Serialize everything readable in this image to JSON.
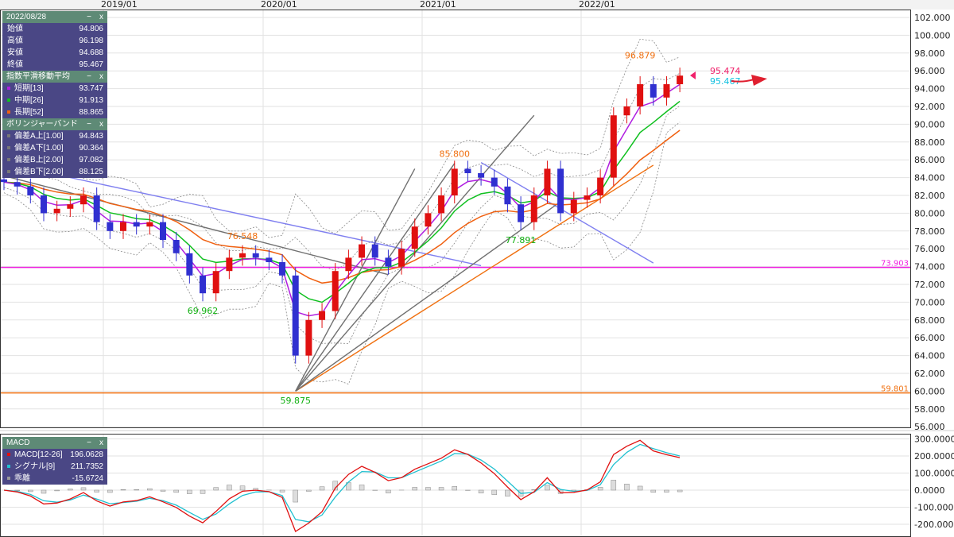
{
  "xaxis": {
    "ticks": [
      "2019/01",
      "2020/01",
      "2021/01",
      "2022/01"
    ]
  },
  "ohlc_panel": {
    "title": "2022/08/28",
    "rows": [
      {
        "label": "始値",
        "value": "94.806"
      },
      {
        "label": "高値",
        "value": "96.198"
      },
      {
        "label": "安値",
        "value": "94.688"
      },
      {
        "label": "終値",
        "value": "95.467"
      }
    ]
  },
  "ema_panel": {
    "title": "指数平滑移動平均",
    "rows": [
      {
        "label": "短期[13]",
        "value": "93.747",
        "color": "#b01ee0"
      },
      {
        "label": "中期[26]",
        "value": "91.913",
        "color": "#10c020"
      },
      {
        "label": "長期[52]",
        "value": "88.865",
        "color": "#f06010"
      }
    ]
  },
  "bb_panel": {
    "title": "ボリンジャーバンド",
    "rows": [
      {
        "label": "偏差A上[1.00]",
        "value": "94.843"
      },
      {
        "label": "偏差A下[1.00]",
        "value": "90.364"
      },
      {
        "label": "偏差B上[2.00]",
        "value": "97.082"
      },
      {
        "label": "偏差B下[2.00]",
        "value": "88.125"
      }
    ]
  },
  "macd_panel": {
    "title": "MACD",
    "rows": [
      {
        "label": "MACD[12-26]",
        "value": "196.0628",
        "color": "#e01010"
      },
      {
        "label": "シグナル[9]",
        "value": "211.7352",
        "color": "#20c0d0"
      },
      {
        "label": "乖離",
        "value": "-15.6724",
        "color": "#999999"
      }
    ]
  },
  "panel_controls": {
    "minimize": "−",
    "close": "x"
  },
  "chart_data": {
    "type": "candlestick",
    "price_axis": {
      "ticks": [
        "102.000",
        "100.000",
        "98.000",
        "96.000",
        "94.000",
        "92.000",
        "90.000",
        "88.000",
        "86.000",
        "84.000",
        "82.000",
        "80.000",
        "78.000",
        "76.000",
        "74.000",
        "72.000",
        "70.000",
        "68.000",
        "66.000",
        "64.000",
        "62.000",
        "60.000",
        "58.000",
        "56.000"
      ],
      "range": [
        56,
        102
      ]
    },
    "macd_axis": {
      "ticks": [
        "300.0000",
        "200.0000",
        "100.0000",
        "0.0000",
        "-100.0000",
        "-200.0000"
      ],
      "range": [
        -280,
        320
      ]
    },
    "start": "2018/05",
    "interval": "month",
    "close": [
      83.5,
      83,
      82,
      80,
      80.5,
      81,
      82,
      79,
      78,
      79,
      78.5,
      79,
      77,
      75.5,
      73,
      71,
      73.5,
      75,
      75.5,
      75,
      74.5,
      73,
      64,
      68,
      69,
      73.5,
      75,
      76.5,
      75,
      74,
      76,
      78.5,
      80,
      82,
      85,
      84.5,
      84,
      83,
      81,
      79,
      82,
      85,
      80,
      81.5,
      82,
      84,
      91,
      92,
      94.5,
      93,
      94.5,
      95.467
    ],
    "up_color": "#e01010",
    "down_color": "#3030d0",
    "annotations": [
      {
        "text": "76.548",
        "date": "2019/11",
        "price": 76.548,
        "color": "#f07010"
      },
      {
        "text": "69.962",
        "date": "2019/08",
        "price": 69.962,
        "color": "#10b010"
      },
      {
        "text": "59.875",
        "date": "2020/03",
        "price": 59.875,
        "color": "#10b010"
      },
      {
        "text": "85.800",
        "date": "2021/03",
        "price": 85.8,
        "color": "#f07010"
      },
      {
        "text": "77.891",
        "date": "2021/08",
        "price": 77.891,
        "color": "#10b010"
      },
      {
        "text": "96.879",
        "date": "2022/05",
        "price": 96.879,
        "color": "#f07010"
      },
      {
        "text": "95.474",
        "price": 95.474,
        "color": "#f0206a"
      },
      {
        "text": "95.467",
        "price": 95.467,
        "color": "#10c0e0"
      }
    ],
    "hlines": [
      {
        "price": 73.903,
        "label": "73.903",
        "color": "#f020e0"
      },
      {
        "price": 59.801,
        "label": "59.801",
        "color": "#f07010"
      }
    ],
    "trendlines": [
      {
        "from": [
          "2018/05",
          85.6
        ],
        "to": [
          "2021/05",
          74.1
        ],
        "color": "#8080f0"
      },
      {
        "from": [
          "2018/05",
          84.2
        ],
        "to": [
          "2020/10",
          73.1
        ],
        "color": "#707070"
      },
      {
        "from": [
          "2021/05",
          85.7
        ],
        "to": [
          "2022/06",
          74.4
        ],
        "color": "#8080f0"
      },
      {
        "from": [
          "2020/03",
          60
        ],
        "to": [
          "2022/06",
          85.4
        ],
        "color": "#f07010"
      },
      {
        "from": [
          "2020/03",
          60
        ],
        "to": [
          "2020/12",
          85
        ],
        "color": "#707070"
      },
      {
        "from": [
          "2020/03",
          60
        ],
        "to": [
          "2021/03",
          85.6
        ],
        "color": "#707070"
      },
      {
        "from": [
          "2020/03",
          60
        ],
        "to": [
          "2021/09",
          91
        ],
        "color": "#707070"
      },
      {
        "from": [
          "2020/03",
          60
        ],
        "to": [
          "2021/11",
          81.3
        ],
        "color": "#707070"
      }
    ]
  }
}
